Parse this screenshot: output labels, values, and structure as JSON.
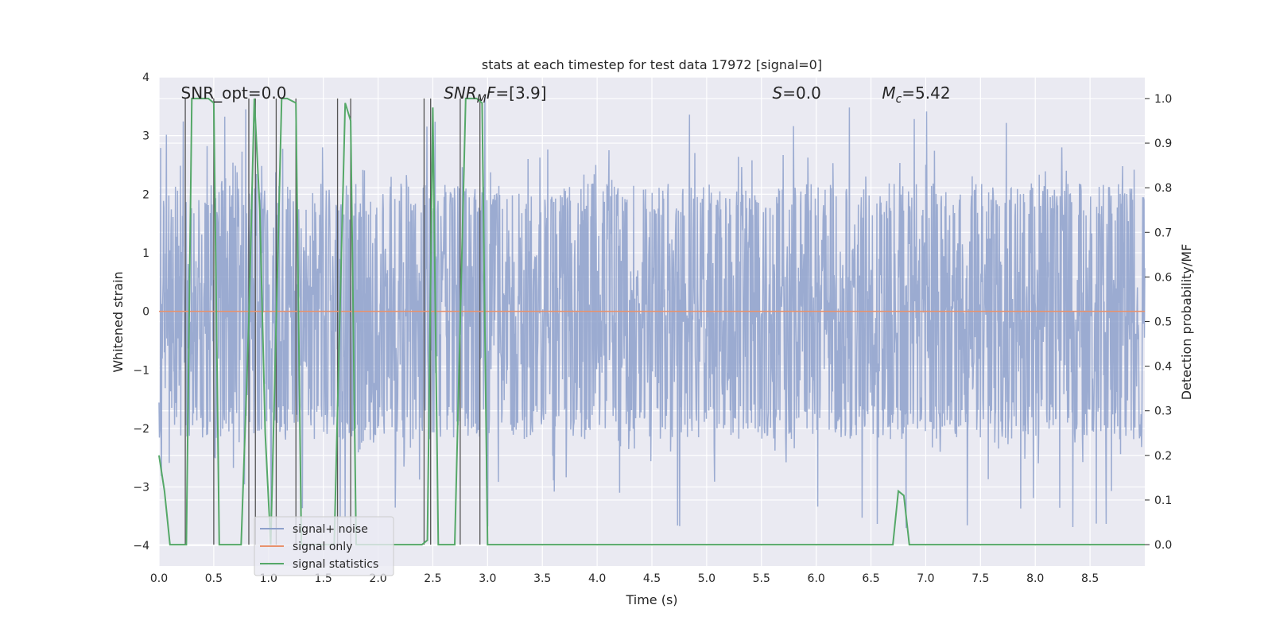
{
  "chart_data": {
    "type": "line",
    "title": "stats at each timestep for test data 17972 [signal=0]",
    "xlabel": "Time (s)",
    "ylabel": "Whitened strain",
    "y2label": "Detection probability/MF",
    "xlim": [
      0.0,
      9.0
    ],
    "ylim": [
      -4.35,
      4.0
    ],
    "y2lim": [
      -0.048,
      1.048
    ],
    "xticks": [
      0.0,
      0.5,
      1.0,
      1.5,
      2.0,
      2.5,
      3.0,
      3.5,
      4.0,
      4.5,
      5.0,
      5.5,
      6.0,
      6.5,
      7.0,
      7.5,
      8.0,
      8.5
    ],
    "xtick_labels": [
      "0.0",
      "0.5",
      "1.0",
      "1.5",
      "2.0",
      "2.5",
      "3.0",
      "3.5",
      "4.0",
      "4.5",
      "5.0",
      "5.5",
      "6.0",
      "6.5",
      "7.0",
      "7.5",
      "8.0",
      "8.5"
    ],
    "yticks": [
      -4,
      -3,
      -2,
      -1,
      0,
      1,
      2,
      3,
      4
    ],
    "ytick_labels": [
      "−4",
      "−3",
      "−2",
      "−1",
      "0",
      "1",
      "2",
      "3",
      "4"
    ],
    "y2ticks": [
      0.0,
      0.1,
      0.2,
      0.3,
      0.4,
      0.5,
      0.6,
      0.7,
      0.8,
      0.9,
      1.0
    ],
    "y2tick_labels": [
      "0.0",
      "0.1",
      "0.2",
      "0.3",
      "0.4",
      "0.5",
      "0.6",
      "0.7",
      "0.8",
      "0.9",
      "1.0"
    ],
    "grid": true,
    "legend": {
      "position": "lower-left",
      "entries": [
        {
          "label": "signal+ noise",
          "color": "#8da0cb"
        },
        {
          "label": "signal only",
          "color": "#e8916c"
        },
        {
          "label": "signal statistics",
          "color": "#55a868"
        }
      ]
    },
    "annotations": [
      {
        "prefix": "SNR_opt=0.0",
        "italic": "",
        "sub": "",
        "suffix": "",
        "x": 0.2
      },
      {
        "prefix": "",
        "italic": "SNR",
        "sub": "M",
        "italic2": "F",
        "suffix": "=[3.9]",
        "x": 2.6
      },
      {
        "prefix": "",
        "italic": "S",
        "sub": "",
        "suffix": "=0.0",
        "x": 5.6
      },
      {
        "prefix": "",
        "italic": "M",
        "sub": "c",
        "suffix": "=5.42",
        "x": 6.6
      }
    ],
    "series": [
      {
        "name": "signal+ noise",
        "color": "#8da0cb",
        "description": "white noise, approx ±1.9 envelope with spikes to about ±3.6",
        "amplitude_envelope": 1.9,
        "max_excursion": 3.7
      },
      {
        "name": "signal only",
        "color": "#e8916c",
        "x": [
          0.0,
          9.0
        ],
        "y": [
          0.0,
          0.0
        ]
      },
      {
        "name": "signal statistics",
        "color": "#55a868",
        "axis": "right",
        "x": [
          0.0,
          0.05,
          0.1,
          0.2,
          0.25,
          0.3,
          0.35,
          0.45,
          0.5,
          0.55,
          0.6,
          0.7,
          0.75,
          0.82,
          0.87,
          0.92,
          0.97,
          1.02,
          1.07,
          1.12,
          1.17,
          1.25,
          1.3,
          1.4,
          1.5,
          1.6,
          1.65,
          1.7,
          1.75,
          1.8,
          1.9,
          2.0,
          2.1,
          2.2,
          2.3,
          2.4,
          2.45,
          2.5,
          2.55,
          2.65,
          2.7,
          2.75,
          2.8,
          2.85,
          2.9,
          2.95,
          3.0,
          3.05,
          3.1,
          3.5,
          4.0,
          5.0,
          6.0,
          6.5,
          6.7,
          6.75,
          6.8,
          6.85,
          6.9,
          7.0,
          8.0,
          9.0
        ],
        "y": [
          0.2,
          0.12,
          0.0,
          0.0,
          0.0,
          1.0,
          1.0,
          1.0,
          0.99,
          0.0,
          0.0,
          0.0,
          0.0,
          0.5,
          1.0,
          0.75,
          0.25,
          0.0,
          0.5,
          1.0,
          1.0,
          0.99,
          0.0,
          0.0,
          0.0,
          0.0,
          0.5,
          0.99,
          0.95,
          0.0,
          0.0,
          0.0,
          0.0,
          0.0,
          0.0,
          0.0,
          0.01,
          0.98,
          0.0,
          0.0,
          0.0,
          0.5,
          1.0,
          1.0,
          1.0,
          0.99,
          0.0,
          0.0,
          0.0,
          0.0,
          0.0,
          0.0,
          0.0,
          0.0,
          0.0,
          0.12,
          0.11,
          0.0,
          0.0,
          0.0,
          0.0,
          0.0
        ]
      }
    ],
    "vertical_markers": [
      0.24,
      0.5,
      0.82,
      0.88,
      1.07,
      1.25,
      1.63,
      1.75,
      2.42,
      2.48,
      2.75,
      2.93
    ]
  }
}
